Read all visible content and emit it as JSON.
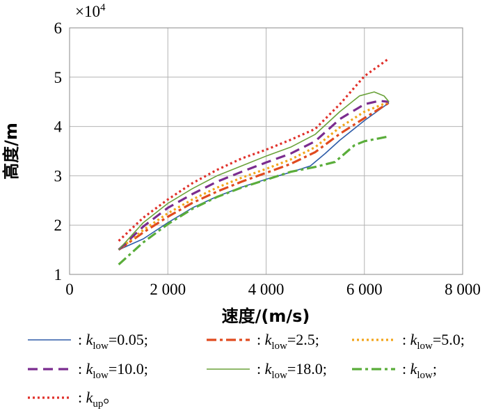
{
  "chart_data": {
    "type": "line",
    "xlabel": "速度/(m/s)",
    "ylabel": "高度/m",
    "y_multiplier_label": "×10",
    "y_multiplier_exp": "4",
    "xlim": [
      0,
      8000
    ],
    "ylim": [
      1,
      6
    ],
    "xticks": [
      0,
      2000,
      4000,
      6000,
      8000
    ],
    "xtick_labels": [
      "0",
      "2 000",
      "4 000",
      "6 000",
      "8 000"
    ],
    "yticks": [
      1,
      2,
      3,
      4,
      5,
      6
    ],
    "ytick_labels": [
      "1",
      "2",
      "3",
      "4",
      "5",
      "6"
    ],
    "grid": true,
    "legend_position": "bottom",
    "series": [
      {
        "label": {
          "prefix": ": ",
          "var": "k",
          "sub": "low",
          "suffix": "=0.05;"
        },
        "color": "#2e5ca8",
        "dash": "solid",
        "width": 1.6,
        "x": [
          1000,
          1500,
          2000,
          2500,
          3000,
          3500,
          4000,
          4500,
          4900,
          5200,
          5500,
          6000,
          6500
        ],
        "y": [
          1.5,
          1.72,
          2.05,
          2.35,
          2.58,
          2.77,
          2.93,
          3.07,
          3.2,
          3.45,
          3.72,
          4.12,
          4.48
        ]
      },
      {
        "label": {
          "prefix": ": ",
          "var": "k",
          "sub": "low",
          "suffix": "=2.5;"
        },
        "color": "#e04a1f",
        "dash": "dashdot",
        "width": 3.2,
        "x": [
          1000,
          1500,
          2000,
          2500,
          3000,
          3500,
          4000,
          4500,
          5000,
          5500,
          6000,
          6500
        ],
        "y": [
          1.5,
          1.85,
          2.17,
          2.45,
          2.68,
          2.88,
          3.06,
          3.24,
          3.48,
          3.85,
          4.17,
          4.48
        ]
      },
      {
        "label": {
          "prefix": ": ",
          "var": "k",
          "sub": "low",
          "suffix": "=5.0;"
        },
        "color": "#f2a51a",
        "dash": "dot",
        "width": 3.2,
        "x": [
          1000,
          1500,
          2000,
          2500,
          3000,
          3500,
          4000,
          4500,
          5000,
          5500,
          6000,
          6500
        ],
        "y": [
          1.5,
          1.9,
          2.24,
          2.52,
          2.76,
          2.96,
          3.14,
          3.33,
          3.58,
          3.98,
          4.3,
          4.5
        ]
      },
      {
        "label": {
          "prefix": ": ",
          "var": "k",
          "sub": "low",
          "suffix": "=10.0;"
        },
        "color": "#7b2c8f",
        "dash": "dash",
        "width": 3.2,
        "x": [
          1000,
          1500,
          2000,
          2500,
          3000,
          3500,
          4000,
          4500,
          5000,
          5500,
          6000,
          6300,
          6500
        ],
        "y": [
          1.5,
          1.97,
          2.35,
          2.63,
          2.88,
          3.08,
          3.27,
          3.45,
          3.7,
          4.15,
          4.45,
          4.52,
          4.5
        ]
      },
      {
        "label": {
          "prefix": ": ",
          "var": "k",
          "sub": "low",
          "suffix": "=18.0;"
        },
        "color": "#6aa23a",
        "dash": "solid",
        "width": 1.6,
        "x": [
          1000,
          1500,
          2000,
          2500,
          3000,
          3500,
          4000,
          4500,
          5000,
          5500,
          5900,
          6200,
          6400,
          6500
        ],
        "y": [
          1.5,
          2.05,
          2.44,
          2.74,
          3.0,
          3.2,
          3.4,
          3.58,
          3.84,
          4.3,
          4.62,
          4.7,
          4.62,
          4.5
        ]
      },
      {
        "label": {
          "prefix": ": ",
          "var": "k",
          "sub": "low",
          "suffix": ";"
        },
        "color": "#5aad3a",
        "dash": "dashdot",
        "width": 3.2,
        "x": [
          1000,
          1500,
          2000,
          2500,
          3000,
          3500,
          4000,
          4500,
          5000,
          5400,
          5800,
          6000,
          6500
        ],
        "y": [
          1.2,
          1.65,
          2.02,
          2.33,
          2.57,
          2.76,
          2.92,
          3.08,
          3.18,
          3.28,
          3.62,
          3.7,
          3.8
        ]
      },
      {
        "label": {
          "prefix": ": ",
          "var": "k",
          "sub": "up",
          "suffix": "。"
        },
        "color": "#e0302a",
        "dash": "dot",
        "width": 3.2,
        "x": [
          1000,
          1500,
          2000,
          2500,
          3000,
          3500,
          4000,
          4500,
          5000,
          5500,
          6000,
          6500
        ],
        "y": [
          1.68,
          2.15,
          2.52,
          2.85,
          3.12,
          3.35,
          3.53,
          3.73,
          3.95,
          4.45,
          5.02,
          5.38
        ]
      }
    ]
  }
}
